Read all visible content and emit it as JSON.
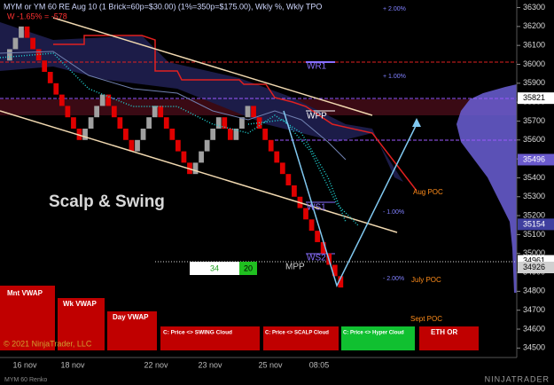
{
  "header": {
    "title": "MYM or YM 60 RE Aug 10 (1 Brick=60p=$30.00) (1%=350p=$175.00), Wkly %, Wkly TPO",
    "subtitle": "W -1.65% = -578"
  },
  "watermark": "Scalp & Swing",
  "copyright": "© 2021 NinjaTrader, LLC",
  "instrument_tab": "MYM 60 Renko",
  "logo": "NINJATRADER",
  "price_axis": {
    "ylim": [
      34450,
      36340
    ],
    "ticks": [
      36300,
      36200,
      36100,
      36000,
      35900,
      35800,
      35700,
      35600,
      35500,
      35400,
      35300,
      35200,
      35100,
      35000,
      34900,
      34800,
      34700,
      34600,
      34500
    ]
  },
  "time_axis": {
    "labels": [
      "16 nov",
      "18 nov",
      "22 nov",
      "23 nov",
      "25 nov",
      "08:05"
    ]
  },
  "bricks": {
    "brick_size": 60,
    "up_color": "#a0a0a0",
    "down_color": "#e00000",
    "closes": [
      36080,
      36140,
      36200,
      36140,
      36080,
      36020,
      35960,
      35900,
      35840,
      35780,
      35720,
      35660,
      35600,
      35660,
      35720,
      35780,
      35840,
      35780,
      35720,
      35660,
      35600,
      35540,
      35600,
      35660,
      35720,
      35780,
      35720,
      35660,
      35600,
      35540,
      35480,
      35420,
      35480,
      35540,
      35600,
      35660,
      35720,
      35660,
      35600,
      35660,
      35720,
      35780,
      35720,
      35660,
      35600,
      35540,
      35480,
      35420,
      35360,
      35300,
      35240,
      35180,
      35120,
      35060,
      35000,
      34940,
      34880,
      34820
    ]
  },
  "price_flags": [
    {
      "value": 35821,
      "color": "#ffffff",
      "text_color": "#000000"
    },
    {
      "value": 35496,
      "color": "#6a5acd",
      "text_color": "#ffffff"
    },
    {
      "value": 35154,
      "color": "#3f3f9f",
      "text_color": "#ffffff"
    },
    {
      "value": 34961,
      "color": "#ffffff",
      "text_color": "#000000"
    },
    {
      "value": 34926,
      "color": "#d0d0d0",
      "text_color": "#000000"
    }
  ],
  "level_labels": [
    "WR1",
    "WPP",
    "WS1",
    "WS2",
    "MPP"
  ],
  "percent_labels": [
    "+ 2.00%",
    "+ 1.00%",
    "- 1.00%",
    "- 2.00%"
  ],
  "poc_labels": [
    "Aug POC",
    "July POC",
    "Sept POC"
  ],
  "order_box": {
    "quantity": 34,
    "count": 20
  },
  "buttons": [
    "Mnt VWAP",
    "Wk VWAP",
    "Day VWAP",
    "C: Price <> SWING Cloud",
    "C: Price <> SCALP Cloud",
    "C: Price <> Hyper Cloud",
    "ETH OR"
  ]
}
